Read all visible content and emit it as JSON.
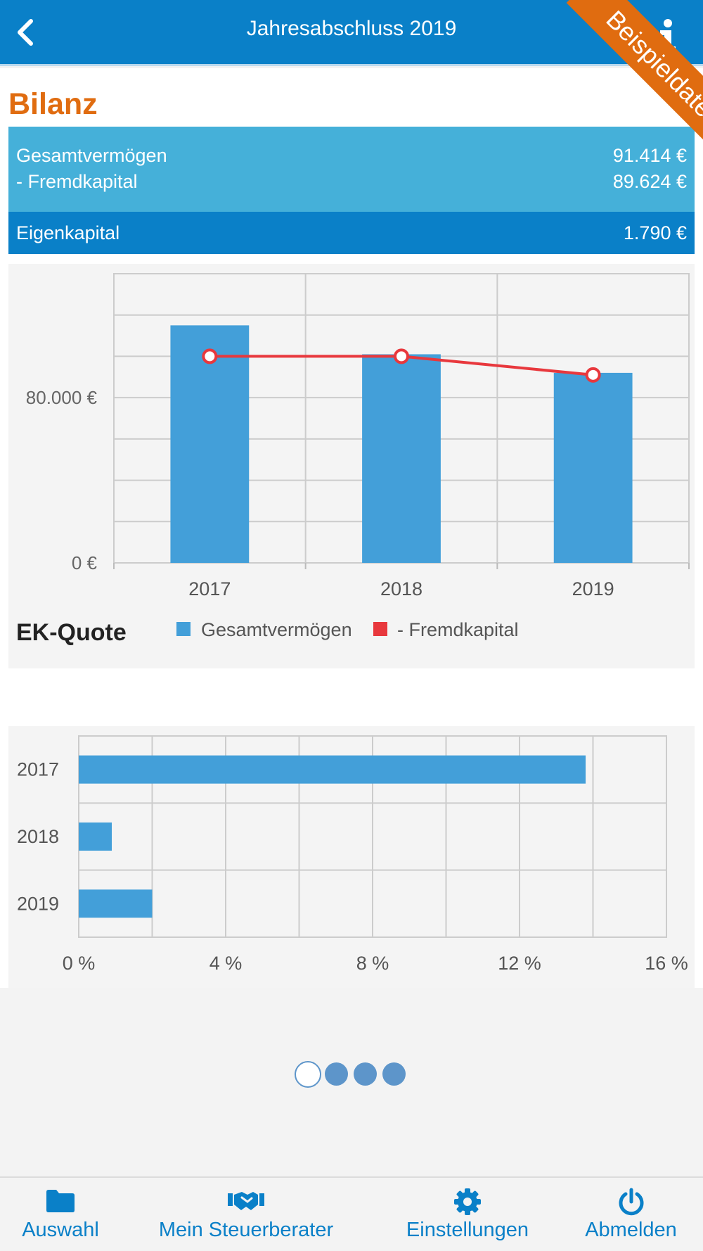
{
  "header": {
    "title": "Jahresabschluss 2019",
    "back_icon": "chevron-left-icon",
    "info_icon": "info-icon"
  },
  "ribbon": {
    "label": "Beispieldaten",
    "color": "#e06c10"
  },
  "bilanz": {
    "title": "Bilanz",
    "rows": [
      {
        "label": "Gesamtvermögen",
        "value": "91.414 €"
      },
      {
        "label": "- Fremdkapital",
        "value": "89.624 €"
      }
    ],
    "equity": {
      "label": "Eigenkapital",
      "value": "1.790 €"
    }
  },
  "ek_section": {
    "title": "EK-Quote"
  },
  "pager": {
    "count": 4,
    "active": 0
  },
  "tabbar": {
    "items": [
      {
        "label": "Auswahl",
        "icon": "folder-icon"
      },
      {
        "label": "Mein Steuerberater",
        "icon": "handshake-icon"
      },
      {
        "label": "Einstellungen",
        "icon": "gear-icon"
      },
      {
        "label": "Abmelden",
        "icon": "power-icon"
      }
    ]
  },
  "colors": {
    "primary": "#0a80c8",
    "light": "#45b0d9",
    "bar": "#439fd9",
    "line": "#e8383d",
    "orange": "#e06c10"
  },
  "chart_data": [
    {
      "type": "bar",
      "categories": [
        "2017",
        "2018",
        "2019"
      ],
      "series": [
        {
          "name": "Gesamtvermögen",
          "kind": "bar",
          "values": [
            115000,
            101000,
            92000
          ],
          "color": "#439fd9"
        },
        {
          "name": "- Fremdkapital",
          "kind": "line",
          "values": [
            100000,
            100000,
            91000
          ],
          "color": "#e8383d"
        }
      ],
      "ylim": [
        0,
        140000
      ],
      "ytick_step": 20000,
      "ytick_labels": [
        {
          "value": 0,
          "label": "0 €"
        },
        {
          "value": 80000,
          "label": "80.000 €"
        }
      ],
      "grid": true,
      "legend": "bottom"
    },
    {
      "type": "bar",
      "orientation": "horizontal",
      "categories": [
        "2017",
        "2018",
        "2019"
      ],
      "series": [
        {
          "name": "EK-Quote",
          "values": [
            13.8,
            0.9,
            2.0
          ],
          "color": "#439fd9"
        }
      ],
      "xlim": [
        0,
        16
      ],
      "xtick_step": 2,
      "xtick_labels": [
        {
          "value": 0,
          "label": "0 %"
        },
        {
          "value": 4,
          "label": "4 %"
        },
        {
          "value": 8,
          "label": "8 %"
        },
        {
          "value": 12,
          "label": "12 %"
        },
        {
          "value": 16,
          "label": "16 %"
        }
      ],
      "grid": true,
      "legend": "bottom"
    }
  ]
}
